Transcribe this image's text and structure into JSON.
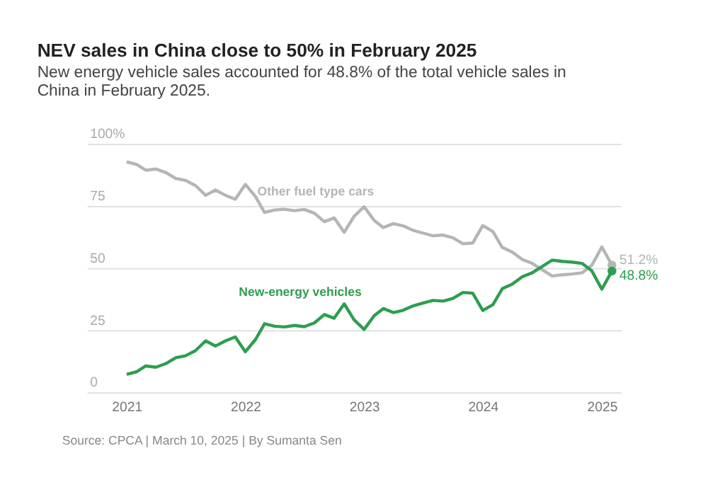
{
  "chart_data": {
    "type": "line",
    "title": "NEV sales in China close to 50% in February 2025",
    "subtitle": "New energy vehicle sales accounted for 48.8% of the total vehicle sales in China in February 2025.",
    "annotations": [
      "Source: CPCA | March 10, 2025 | By Sumanta Sen"
    ],
    "x": [
      "2021-01",
      "2021-02",
      "2021-03",
      "2021-04",
      "2021-05",
      "2021-06",
      "2021-07",
      "2021-08",
      "2021-09",
      "2021-10",
      "2021-11",
      "2021-12",
      "2022-01",
      "2022-02",
      "2022-03",
      "2022-04",
      "2022-05",
      "2022-06",
      "2022-07",
      "2022-08",
      "2022-09",
      "2022-10",
      "2022-11",
      "2022-12",
      "2023-01",
      "2023-02",
      "2023-03",
      "2023-04",
      "2023-05",
      "2023-06",
      "2023-07",
      "2023-08",
      "2023-09",
      "2023-10",
      "2023-11",
      "2023-12",
      "2024-01",
      "2024-02",
      "2024-03",
      "2024-04",
      "2024-05",
      "2024-06",
      "2024-07",
      "2024-08",
      "2024-09",
      "2024-10",
      "2024-11",
      "2024-12",
      "2025-01",
      "2025-02"
    ],
    "series": [
      {
        "name": "Other fuel type cars",
        "color": "#b5b5b5",
        "values": [
          92.8,
          91.7,
          89.4,
          89.9,
          88.5,
          86.1,
          85.3,
          83.2,
          79.3,
          81.4,
          79.3,
          77.7,
          83.7,
          78.8,
          72.4,
          73.4,
          73.7,
          73.1,
          73.6,
          72.1,
          68.7,
          70.2,
          64.4,
          70.8,
          74.7,
          69.2,
          66.3,
          67.9,
          67.0,
          65.2,
          64.1,
          63.0,
          63.3,
          62.2,
          59.8,
          60.1,
          67.1,
          64.7,
          58.3,
          56.4,
          53.5,
          51.9,
          49.4,
          46.8,
          47.3,
          47.6,
          48.1,
          51.1,
          58.5,
          51.2
        ],
        "value_labels": [
          null,
          null,
          null,
          null,
          null,
          null,
          null,
          null,
          null,
          null,
          null,
          null,
          null,
          null,
          null,
          null,
          null,
          null,
          null,
          null,
          null,
          null,
          null,
          null,
          null,
          null,
          null,
          null,
          null,
          null,
          null,
          null,
          null,
          null,
          null,
          null,
          null,
          null,
          null,
          null,
          null,
          null,
          null,
          null,
          null,
          null,
          null,
          null,
          null,
          "51.2%"
        ]
      },
      {
        "name": "New-energy vehicles",
        "color": "#2e9e4f",
        "values": [
          7.2,
          8.3,
          10.6,
          10.1,
          11.5,
          13.9,
          14.7,
          16.8,
          20.7,
          18.6,
          20.7,
          22.3,
          16.3,
          21.2,
          27.6,
          26.6,
          26.3,
          26.9,
          26.4,
          27.9,
          31.3,
          29.8,
          35.6,
          29.2,
          25.3,
          30.8,
          33.7,
          32.1,
          33.0,
          34.8,
          35.9,
          37.0,
          36.7,
          37.8,
          40.2,
          39.9,
          32.9,
          35.3,
          41.7,
          43.6,
          46.5,
          48.1,
          50.6,
          53.2,
          52.7,
          52.4,
          51.9,
          48.9,
          41.5,
          48.8
        ],
        "value_labels": [
          null,
          null,
          null,
          null,
          null,
          null,
          null,
          null,
          null,
          null,
          null,
          null,
          null,
          null,
          null,
          null,
          null,
          null,
          null,
          null,
          null,
          null,
          null,
          null,
          null,
          null,
          null,
          null,
          null,
          null,
          null,
          null,
          null,
          null,
          null,
          null,
          null,
          null,
          null,
          null,
          null,
          null,
          null,
          null,
          null,
          null,
          null,
          null,
          null,
          "48.8%"
        ]
      }
    ],
    "xlim": [
      "2020-09",
      "2025-03"
    ],
    "xticks": [
      {
        "value": "2021",
        "label": "2021"
      },
      {
        "value": "2022",
        "label": "2022"
      },
      {
        "value": "2023",
        "label": "2023"
      },
      {
        "value": "2024",
        "label": "2024"
      },
      {
        "value": "2025",
        "label": "2025"
      }
    ],
    "ylim": [
      0,
      100
    ],
    "yticks": [
      0,
      25,
      50,
      75,
      {
        "value": 100,
        "label": "100%"
      }
    ],
    "grid": "y",
    "marker": "none",
    "line_style": "solid"
  }
}
